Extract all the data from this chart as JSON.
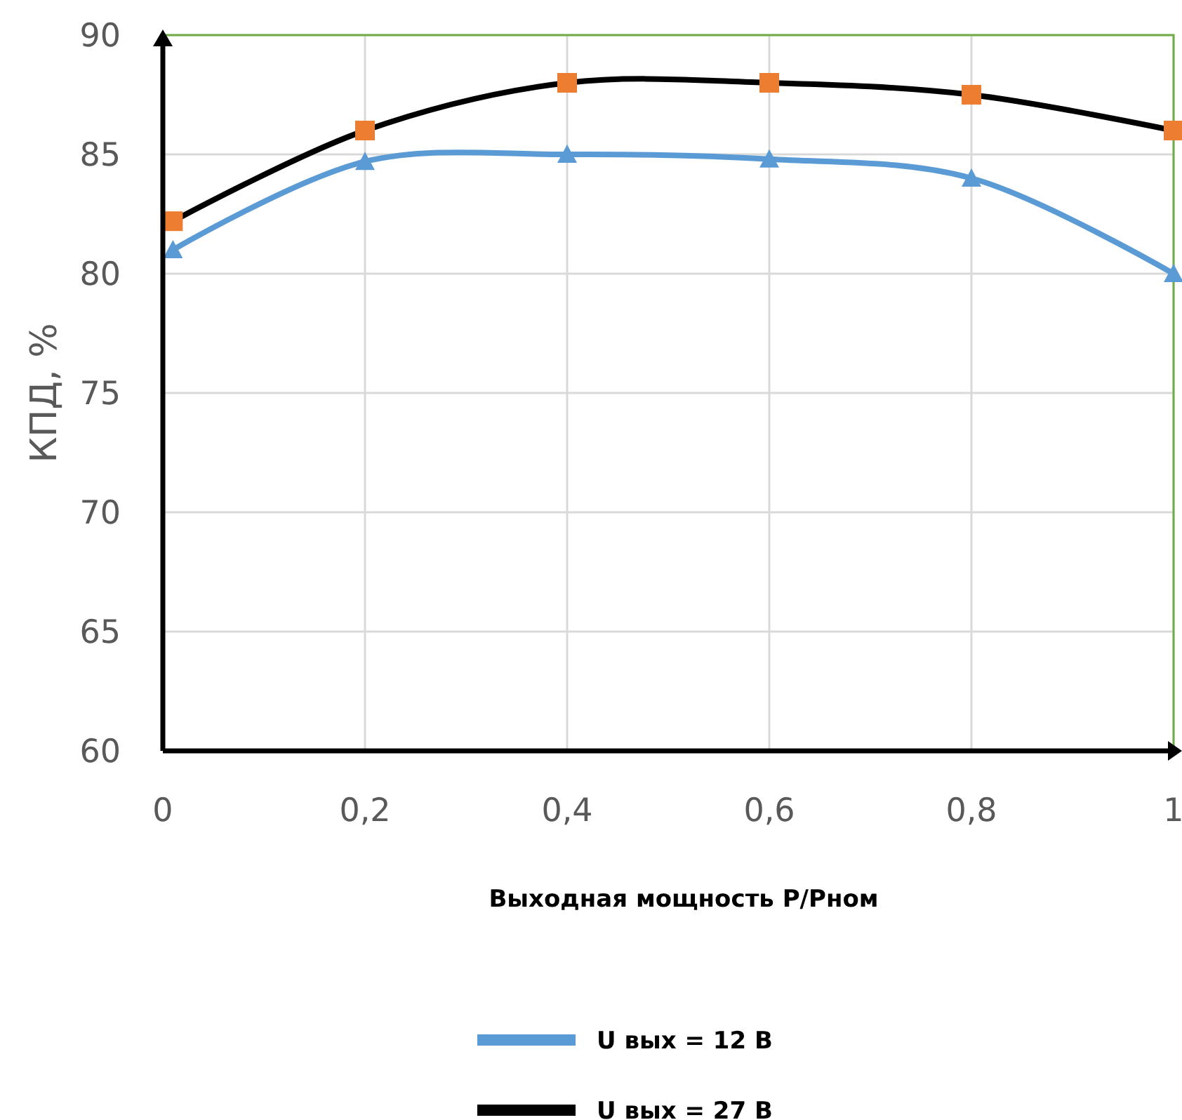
{
  "chart_data": {
    "type": "line",
    "xlabel": "Выходная мощность P/Pном",
    "ylabel": "КПД, %",
    "xlim": [
      0,
      1
    ],
    "xticks": [
      0,
      {
        "value": 0.2,
        "label": "0,2"
      },
      {
        "value": 0.4,
        "label": "0,4"
      },
      {
        "value": 0.6,
        "label": "0,6"
      },
      {
        "value": 0.8,
        "label": "0,8"
      },
      1
    ],
    "ylim": [
      60,
      90
    ],
    "yticks": [
      60,
      65,
      70,
      75,
      80,
      85,
      90
    ],
    "grid": true,
    "legend": "bottom",
    "line_style": "solid",
    "series": [
      {
        "name": "U вых = 12 В",
        "color": "#5b9bd5",
        "marker": "triangle",
        "x": [
          0.01,
          0.2,
          0.4,
          0.6,
          0.8,
          1
        ],
        "values": [
          81,
          84.7,
          85,
          84.8,
          84,
          80
        ]
      },
      {
        "name": "U вых = 27 В",
        "color": "#000000",
        "marker": "square",
        "colors": [
          "#ed7d31",
          "#ed7d31",
          "#ed7d31",
          "#ed7d31",
          "#ed7d31",
          "#ed7d31"
        ],
        "x": [
          0.01,
          0.2,
          0.4,
          0.6,
          0.8,
          1
        ],
        "values": [
          82.2,
          86,
          88,
          88,
          87.5,
          86
        ]
      }
    ]
  }
}
